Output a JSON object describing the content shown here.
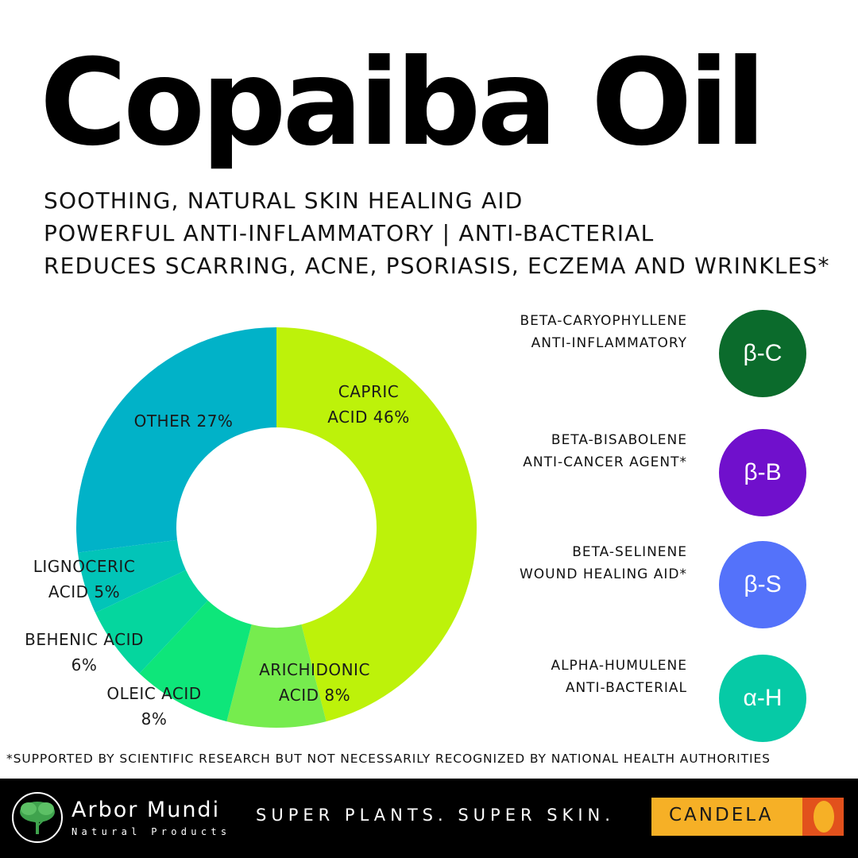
{
  "title": "Copaiba Oil",
  "benefits": [
    "SOOTHING, NATURAL SKIN HEALING AID",
    "POWERFUL ANTI-INFLAMMATORY | ANTI-BACTERIAL",
    "REDUCES SCARRING, ACNE, PSORIASIS, ECZEMA AND WRINKLES*"
  ],
  "chart_data": {
    "type": "pie",
    "variant": "donut",
    "slices": [
      {
        "label_lines": [
          "CAPRIC",
          "ACID 46%"
        ],
        "value": 46,
        "color": "#bdf20a"
      },
      {
        "label_lines": [
          "ARICHIDONIC",
          "ACID 8%"
        ],
        "value": 8,
        "color": "#76ec4e"
      },
      {
        "label_lines": [
          "OLEIC ACID",
          "8%"
        ],
        "value": 8,
        "color": "#0ee67a"
      },
      {
        "label_lines": [
          "BEHENIC ACID",
          "6%"
        ],
        "value": 6,
        "color": "#05d69e"
      },
      {
        "label_lines": [
          "LIGNOCERIC",
          "ACID 5%"
        ],
        "value": 5,
        "color": "#02c4b8"
      },
      {
        "label_lines": [
          "OTHER 27%"
        ],
        "value": 27,
        "color": "#01b2c8"
      }
    ]
  },
  "compounds": [
    {
      "name": "BETA-CARYOPHYLLENE",
      "benefit": "ANTI-INFLAMMATORY",
      "symbol": "β-C",
      "color": "#0b6b2c"
    },
    {
      "name": "BETA-BISABOLENE",
      "benefit": "ANTI-CANCER AGENT*",
      "symbol": "β-B",
      "color": "#7010cc"
    },
    {
      "name": "BETA-SELINENE ",
      "benefit": "WOUND HEALING AID*",
      "symbol": "β-S",
      "color": "#5472fa"
    },
    {
      "name": "ALPHA-HUMULENE",
      "benefit": "ANTI-BACTERIAL",
      "symbol": "α-H",
      "color": "#06caa6"
    }
  ],
  "footnote": "*SUPPORTED BY SCIENTIFIC RESEARCH BUT NOT NECESSARILY RECOGNIZED BY NATIONAL HEALTH AUTHORITIES",
  "footer": {
    "brand_name": "Arbor Mundi",
    "brand_sub": "Natural Products",
    "tagline": "SUPER PLANTS. SUPER SKIN.",
    "partner": "CANDELA"
  }
}
